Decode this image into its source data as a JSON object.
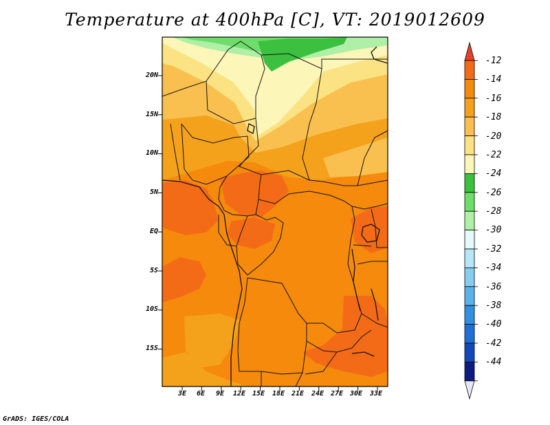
{
  "title": "Temperature at 400hPa [C], VT: 2019012609",
  "credit": "GrADS: IGES/COLA",
  "map": {
    "lat_ticks": [
      "20N",
      "15N",
      "10N",
      "5N",
      "EQ",
      "5S",
      "10S",
      "15S"
    ],
    "lon_ticks": [
      "3E",
      "6E",
      "9E",
      "12E",
      "15E",
      "18E",
      "21E",
      "24E",
      "27E",
      "30E",
      "33E"
    ]
  },
  "colorbar": {
    "labels": [
      "-12",
      "-14",
      "-16",
      "-18",
      "-20",
      "-22",
      "-24",
      "-26",
      "-28",
      "-30",
      "-32",
      "-34",
      "-36",
      "-38",
      "-40",
      "-42",
      "-44"
    ],
    "colors": [
      "#f46b17",
      "#f58a0c",
      "#f4a21c",
      "#f9c04f",
      "#fbe283",
      "#fdf6b9",
      "#3bc03f",
      "#6fdd6b",
      "#b0efa7",
      "#e5f9fb",
      "#b7e5f6",
      "#88cdf0",
      "#5cb1ea",
      "#3290e2",
      "#1f6fd6",
      "#1549b9",
      "#0d1c7e"
    ],
    "top_arrow_color": "#e8402a",
    "bottom_arrow_color": "#e5e8f8"
  },
  "colors": {
    "band_m12": "#f46b17",
    "band_m14": "#f58a0c",
    "band_m16": "#f4a21c",
    "band_m18": "#f9c04f",
    "band_m20": "#fbe283",
    "band_m22": "#fdf6b9",
    "band_m24": "#3bc03f",
    "band_m26": "#6fdd6b",
    "band_m28": "#b0efa7"
  }
}
